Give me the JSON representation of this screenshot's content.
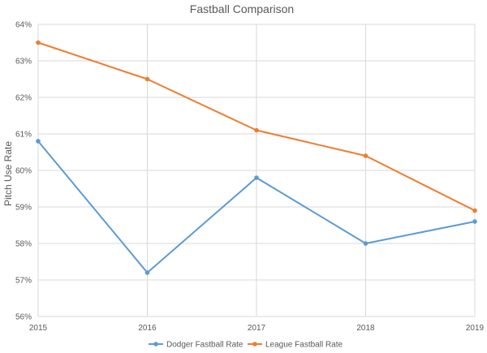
{
  "chart_data": {
    "type": "line",
    "title": "Fastball Comparison",
    "xlabel": "",
    "ylabel": "Pitch Use Rate",
    "categories": [
      "2015",
      "2016",
      "2017",
      "2018",
      "2019"
    ],
    "ylim": [
      56,
      64
    ],
    "yticks": [
      56,
      57,
      58,
      59,
      60,
      61,
      62,
      63,
      64
    ],
    "ytick_labels": [
      "56%",
      "57%",
      "58%",
      "59%",
      "60%",
      "61%",
      "62%",
      "63%",
      "64%"
    ],
    "grid": "both",
    "legend_position": "bottom",
    "series": [
      {
        "name": "Dodger Fastball Rate",
        "color": "#5b9bd5",
        "values": [
          60.8,
          57.2,
          59.8,
          58.0,
          58.6
        ]
      },
      {
        "name": "League Fastball Rate",
        "color": "#ed7d31",
        "values": [
          63.5,
          62.5,
          61.1,
          60.4,
          58.9
        ]
      }
    ]
  }
}
